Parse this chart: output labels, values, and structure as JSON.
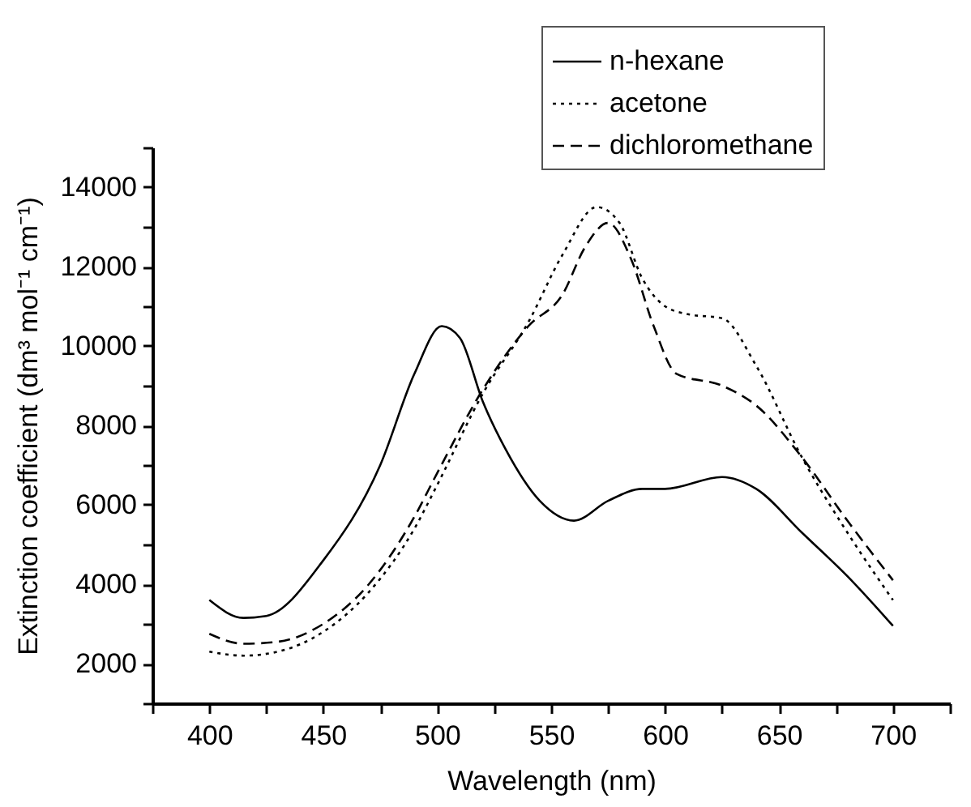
{
  "chart_data": {
    "type": "line",
    "xlabel": "Wavelength (nm)",
    "ylabel": "Extinction coefficient  (dm³ mol⁻¹ cm⁻¹)",
    "xlim": [
      375,
      725
    ],
    "ylim": [
      1000,
      15000
    ],
    "xticks": [
      {
        "value": 375,
        "label": null
      },
      400,
      {
        "value": 425,
        "label": null
      },
      450,
      {
        "value": 475,
        "label": null
      },
      500,
      {
        "value": 525,
        "label": null
      },
      550,
      {
        "value": 575,
        "label": null
      },
      600,
      {
        "value": 625,
        "label": null
      },
      650,
      {
        "value": 675,
        "label": null
      },
      700,
      {
        "value": 725,
        "label": null
      }
    ],
    "yticks": [
      {
        "value": 1000,
        "label": null
      },
      2000,
      {
        "value": 3000,
        "label": null
      },
      4000,
      {
        "value": 5000,
        "label": null
      },
      6000,
      {
        "value": 7000,
        "label": null
      },
      8000,
      {
        "value": 9000,
        "label": null
      },
      10000,
      {
        "value": 11000,
        "label": null
      },
      12000,
      {
        "value": 13000,
        "label": null
      },
      14000,
      {
        "value": 15000,
        "label": null
      }
    ],
    "grid": false,
    "legend": "top right",
    "series": [
      {
        "name": "n-hexane",
        "color": "#000000",
        "line_style": "solid",
        "x": [
          400,
          415,
          425,
          450,
          475,
          490,
          502,
          510,
          520,
          530,
          545,
          560,
          575,
          590,
          600,
          625,
          640,
          660,
          680,
          700
        ],
        "values": [
          3600,
          3150,
          3200,
          4600,
          7000,
          9300,
          10500,
          10200,
          8600,
          7400,
          6100,
          5600,
          6100,
          6400,
          6400,
          6700,
          6400,
          5300,
          4200,
          2950
        ]
      },
      {
        "name": "acetone",
        "color": "#000000",
        "line_style": "dotted",
        "x": [
          400,
          415,
          430,
          450,
          470,
          490,
          500,
          520,
          540,
          555,
          570,
          580,
          590,
          600,
          610,
          625,
          640,
          660,
          680,
          700
        ],
        "values": [
          2300,
          2200,
          2300,
          2800,
          3800,
          5400,
          6500,
          8800,
          10600,
          12300,
          13500,
          13100,
          11700,
          11000,
          10800,
          10700,
          9500,
          7200,
          5300,
          3600
        ]
      },
      {
        "name": "dichloromethane",
        "color": "#000000",
        "line_style": "dashed",
        "x": [
          400,
          415,
          430,
          450,
          470,
          490,
          500,
          520,
          540,
          555,
          565,
          575,
          585,
          595,
          605,
          625,
          640,
          660,
          680,
          700
        ],
        "values": [
          2750,
          2500,
          2550,
          3000,
          4000,
          5700,
          6800,
          8900,
          10500,
          11300,
          12500,
          13100,
          12200,
          10500,
          9300,
          9000,
          8500,
          7200,
          5600,
          4100
        ]
      }
    ]
  }
}
